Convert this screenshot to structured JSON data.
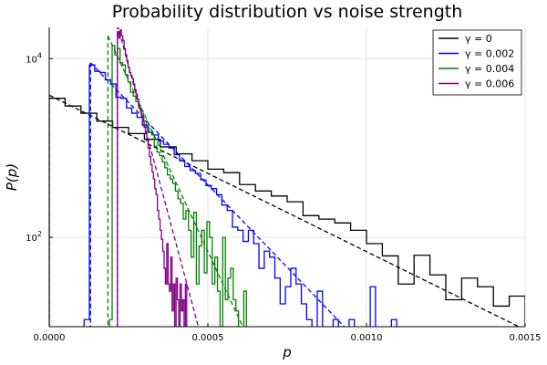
{
  "chart_data": {
    "type": "line",
    "title": "Probability distribution vs noise strength",
    "xlabel": "p",
    "ylabel": "P(p)",
    "xlim": [
      0,
      0.0015
    ],
    "ylim_log10": [
      1.0,
      4.35
    ],
    "y_scale": "log10",
    "grid": true,
    "legend_placement": "top-right",
    "x_ticks": [
      {
        "value": 0,
        "label": "0.0000"
      },
      {
        "value": 0.0005,
        "label": "0.0005"
      },
      {
        "value": 0.001,
        "label": "0.0010"
      },
      {
        "value": 0.0015,
        "label": "0.0015"
      }
    ],
    "y_ticks": [
      {
        "value": 100,
        "label": "10",
        "exp": "2"
      },
      {
        "value": 10000,
        "label": "10",
        "exp": "4"
      }
    ],
    "series": [
      {
        "name": "γ = 0",
        "color": "#000000",
        "bin_width": 5e-05,
        "hist": {
          "x0": 0.0,
          "counts": [
            3600,
            2950,
            2450,
            2000,
            1700,
            1450,
            1250,
            1030,
            860,
            720,
            580,
            530,
            390,
            330,
            290,
            250,
            175,
            160,
            145,
            120,
            85,
            62,
            30,
            63,
            38,
            20,
            35,
            28,
            17,
            22,
            10
          ]
        },
        "fit": {
          "x_start": 0.0,
          "x_end": 0.00148,
          "y_start": 3900,
          "y_end": 10
        }
      },
      {
        "name": "γ = 0.002",
        "color": "#0000ff",
        "bin_width": 1.67e-05,
        "hist": {
          "x0": 0.00011,
          "counts": [
            12,
            8500,
            7200,
            7000,
            5800,
            5200,
            3700,
            3600,
            2800,
            2450,
            2200,
            1800,
            1500,
            1400,
            1200,
            1100,
            1000,
            840,
            720,
            620,
            560,
            520,
            440,
            380,
            350,
            300,
            230,
            200,
            130,
            120,
            90,
            120,
            85,
            45,
            70,
            60,
            35,
            18,
            28,
            45,
            30,
            18,
            12,
            10,
            25,
            10,
            10,
            12,
            10,
            10,
            12,
            10,
            10,
            10,
            28,
            10,
            10,
            10,
            12,
            10
          ]
        },
        "fit": {
          "x_start": 0.00013,
          "x_end": 0.00093,
          "y_start": 9000,
          "y_end": 10
        }
      },
      {
        "name": "γ = 0.004",
        "color": "#008000",
        "bin_width": 8.3e-06,
        "hist": {
          "x0": 0.00019,
          "counts": [
            12,
            14000,
            11000,
            13000,
            9000,
            8500,
            6600,
            5500,
            4200,
            3800,
            3300,
            2800,
            2400,
            2000,
            1700,
            1500,
            1400,
            1050,
            900,
            820,
            700,
            600,
            500,
            450,
            400,
            330,
            270,
            240,
            160,
            200,
            120,
            60,
            190,
            30,
            80,
            120,
            40,
            150,
            100,
            30,
            60,
            25,
            10,
            100,
            20,
            35,
            45,
            20,
            15,
            10,
            10,
            25,
            10,
            10
          ]
        },
        "fit": {
          "x_start": 0.000185,
          "x_end": 0.00061,
          "y_start": 18000,
          "y_end": 10
        }
      },
      {
        "name": "γ = 0.006",
        "color": "#800080",
        "bin_width": 4.2e-06,
        "hist": {
          "x0": 0.000215,
          "counts": [
            20000,
            17000,
            21000,
            18000,
            16000,
            13000,
            11000,
            9500,
            8000,
            7000,
            6500,
            6000,
            5200,
            4500,
            4000,
            3500,
            3000,
            2700,
            2300,
            2000,
            1700,
            1450,
            1200,
            1000,
            800,
            650,
            540,
            450,
            350,
            300,
            200,
            160,
            120,
            95,
            70,
            45,
            30,
            85,
            30,
            25,
            60,
            15,
            30,
            10,
            35,
            20,
            10,
            30,
            15,
            20,
            10,
            30
          ]
        },
        "fit": {
          "x_start": 0.000215,
          "x_end": 0.00047,
          "y_start": 24000,
          "y_end": 10
        }
      }
    ]
  }
}
